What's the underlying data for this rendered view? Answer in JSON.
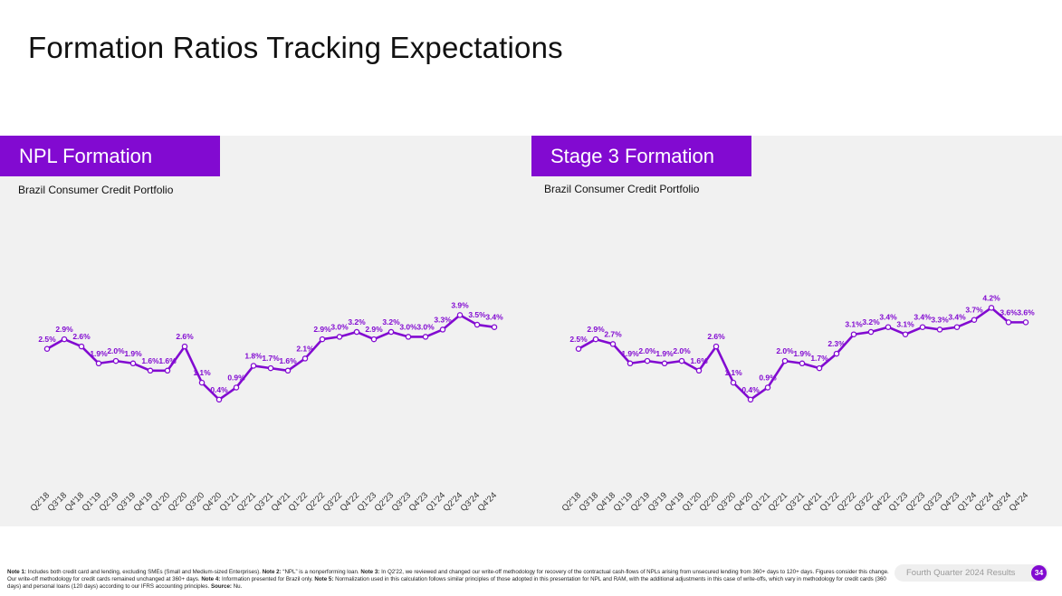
{
  "page": {
    "title": "Formation Ratios Tracking Expectations",
    "accent_color": "#820ad1",
    "footer": {
      "note1_label": "Note 1:",
      "note1_text": " Includes both credit card and lending, excluding SMEs (Small and Medium-sized Enterprises). ",
      "note2_label": "Note 2:",
      "note2_text": " “NPL” is a nonperforming loan. ",
      "note3_label": "Note 3:",
      "note3_text": " In Q2'22, we reviewed and changed our write-off methodology for recovery of the contractual cash-flows of NPLs arising from unsecured lending from 360+ days to 120+ days. Figures consider this change. Our write-off methodology for credit cards remained unchanged at 360+ days. ",
      "note4_label": "Note 4:",
      "note4_text": " Information presented for Brazil only. ",
      "note5_label": "Note 5:",
      "note5_text": " Normalization used in this calculation follows similar principles of those adopted in this presentation for NPL and RAM, with the additional adjustments in this case of write-offs, which vary in methodology for credit cards (360 days) and personal loans (120 days) according to our IFRS accounting principles. ",
      "source_label": "Source:",
      "source_text": " Nu.",
      "report_label": "Fourth Quarter 2024 Results",
      "page_number": "34"
    }
  },
  "chart_data": [
    {
      "type": "line",
      "title": "NPL Formation",
      "subtitle": "Brazil Consumer Credit Portfolio",
      "categories": [
        "Q2'18",
        "Q3'18",
        "Q4'18",
        "Q1'19",
        "Q2'19",
        "Q3'19",
        "Q4'19",
        "Q1'20",
        "Q2'20",
        "Q3'20",
        "Q4'20",
        "Q1'21",
        "Q2'21",
        "Q3'21",
        "Q4'21",
        "Q1'22",
        "Q2'22",
        "Q3'22",
        "Q4'22",
        "Q1'23",
        "Q2'23",
        "Q3'23",
        "Q4'23",
        "Q1'24",
        "Q2'24",
        "Q3'24",
        "Q4'24"
      ],
      "values": [
        2.5,
        2.9,
        2.6,
        1.9,
        2.0,
        1.9,
        1.6,
        1.6,
        2.6,
        1.1,
        0.4,
        0.9,
        1.8,
        1.7,
        1.6,
        2.1,
        2.9,
        3.0,
        3.2,
        2.9,
        3.2,
        3.0,
        3.0,
        3.3,
        3.9,
        3.5,
        3.4
      ],
      "labels": [
        "2.5%",
        "2.9%",
        "2.6%",
        "1.9%",
        "2.0%",
        "1.9%",
        "1.6%",
        "1.6%",
        "2.6%",
        "1.1%",
        "0.4%",
        "0.9%",
        "1.8%",
        "1.7%",
        "1.6%",
        "2.1%",
        "2.9%",
        "3.0%",
        "3.2%",
        "2.9%",
        "3.2%",
        "3.0%",
        "3.0%",
        "3.3%",
        "3.9%",
        "3.5%",
        "3.4%"
      ],
      "line_color": "#820ad1",
      "grid": false,
      "legend": "none"
    },
    {
      "type": "line",
      "title": "Stage 3 Formation",
      "subtitle": "Brazil Consumer Credit Portfolio",
      "categories": [
        "Q2'18",
        "Q3'18",
        "Q4'18",
        "Q1'19",
        "Q2'19",
        "Q3'19",
        "Q4'19",
        "Q1'20",
        "Q2'20",
        "Q3'20",
        "Q4'20",
        "Q1'21",
        "Q2'21",
        "Q3'21",
        "Q4'21",
        "Q1'22",
        "Q2'22",
        "Q3'22",
        "Q4'22",
        "Q1'23",
        "Q2'23",
        "Q3'23",
        "Q4'23",
        "Q1'24",
        "Q2'24",
        "Q3'24",
        "Q4'24"
      ],
      "values": [
        2.5,
        2.9,
        2.7,
        1.9,
        2.0,
        1.9,
        2.0,
        1.6,
        2.6,
        1.1,
        0.4,
        0.9,
        2.0,
        1.9,
        1.7,
        2.3,
        3.1,
        3.2,
        3.4,
        3.1,
        3.4,
        3.3,
        3.4,
        3.7,
        4.2,
        3.6,
        3.6
      ],
      "labels": [
        "2.5%",
        "2.9%",
        "2.7%",
        "1.9%",
        "2.0%",
        "1.9%",
        "2.0%",
        "1.6%",
        "2.6%",
        "1.1%",
        "0.4%",
        "0.9%",
        "2.0%",
        "1.9%",
        "1.7%",
        "2.3%",
        "3.1%",
        "3.2%",
        "3.4%",
        "3.1%",
        "3.4%",
        "3.3%",
        "3.4%",
        "3.7%",
        "4.2%",
        "3.6%",
        "3.6%"
      ],
      "line_color": "#820ad1",
      "grid": false,
      "legend": "none"
    }
  ]
}
